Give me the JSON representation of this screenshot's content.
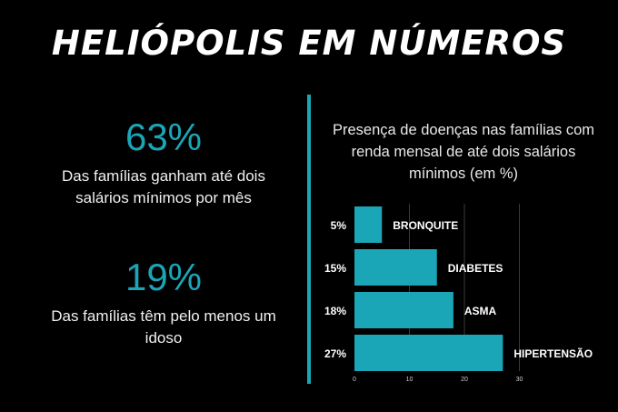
{
  "header": {
    "title": "HELIÓPOLIS EM NÚMEROS"
  },
  "stats": [
    {
      "value": "63%",
      "text": "Das famílias ganham até dois salários mínimos por mês"
    },
    {
      "value": "19%",
      "text": "Das famílias têm pelo menos um idoso"
    }
  ],
  "accent_color": "#1aa6b7",
  "chart_data": {
    "type": "bar",
    "orientation": "horizontal",
    "title": "Presença de doenças nas famílias com renda mensal de até dois salários mínimos (em %)",
    "categories": [
      "BRONQUITE",
      "DIABETES",
      "ASMA",
      "HIPERTENSÃO"
    ],
    "values": [
      5,
      15,
      18,
      27
    ],
    "value_labels": [
      "5%",
      "15%",
      "18%",
      "27%"
    ],
    "xlim": [
      0,
      30
    ],
    "x_ticks": [
      0,
      10,
      20,
      30
    ],
    "grid": true,
    "bar_color": "#1aa6b7"
  }
}
